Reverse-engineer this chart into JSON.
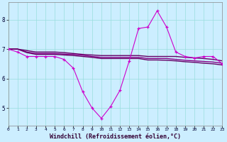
{
  "x": [
    0,
    1,
    2,
    3,
    4,
    5,
    6,
    7,
    8,
    9,
    10,
    11,
    12,
    13,
    14,
    15,
    16,
    17,
    18,
    19,
    20,
    21,
    22,
    23
  ],
  "line_main": [
    7.0,
    6.9,
    6.75,
    6.75,
    6.75,
    6.75,
    6.65,
    6.35,
    5.55,
    5.0,
    4.65,
    5.05,
    5.6,
    6.6,
    7.7,
    7.75,
    8.3,
    7.75,
    6.9,
    6.75,
    6.7,
    6.75,
    6.75,
    6.5
  ],
  "line_flat1": [
    7.0,
    7.0,
    6.95,
    6.9,
    6.9,
    6.9,
    6.88,
    6.85,
    6.82,
    6.8,
    6.78,
    6.78,
    6.78,
    6.78,
    6.78,
    6.75,
    6.75,
    6.75,
    6.75,
    6.72,
    6.7,
    6.68,
    6.65,
    6.6
  ],
  "line_flat2": [
    7.0,
    7.0,
    6.9,
    6.85,
    6.85,
    6.85,
    6.83,
    6.82,
    6.79,
    6.75,
    6.72,
    6.72,
    6.72,
    6.72,
    6.72,
    6.68,
    6.68,
    6.68,
    6.65,
    6.62,
    6.6,
    6.58,
    6.56,
    6.52
  ],
  "line_flat3": [
    7.0,
    7.0,
    6.88,
    6.82,
    6.82,
    6.82,
    6.8,
    6.78,
    6.75,
    6.72,
    6.68,
    6.68,
    6.68,
    6.68,
    6.68,
    6.63,
    6.63,
    6.62,
    6.6,
    6.57,
    6.55,
    6.52,
    6.5,
    6.46
  ],
  "bg_color": "#cceeff",
  "line_color_main": "#cc00cc",
  "line_color_flat1": "#660066",
  "line_color_flat2": "#880088",
  "line_color_flat3": "#660066",
  "grid_color": "#99dddd",
  "xlabel": "Windchill (Refroidissement éolien,°C)",
  "xlim": [
    0,
    23
  ],
  "ylim": [
    4.4,
    8.6
  ],
  "yticks": [
    5,
    6,
    7,
    8
  ],
  "xticks": [
    0,
    1,
    2,
    3,
    4,
    5,
    6,
    7,
    8,
    9,
    10,
    11,
    12,
    13,
    14,
    15,
    16,
    17,
    18,
    19,
    20,
    21,
    22,
    23
  ]
}
